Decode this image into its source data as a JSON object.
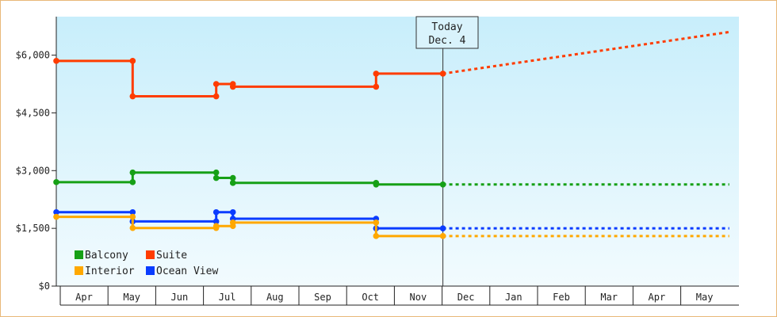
{
  "chart_data": {
    "type": "line",
    "step": true,
    "ylim": [
      0,
      7000
    ],
    "yticks": [
      0,
      1500,
      3000,
      4500,
      6000
    ],
    "ytick_labels": [
      "$0",
      "$1,500",
      "$3,000",
      "$4,500",
      "$6,000"
    ],
    "months": [
      "Apr",
      "May",
      "Jun",
      "Jul",
      "Aug",
      "Sep",
      "Oct",
      "Nov",
      "Dec",
      "Jan",
      "Feb",
      "Mar",
      "Apr",
      "May"
    ],
    "today_label": "Today",
    "today_date": "Dec. 4",
    "today_index": 8.1,
    "projection_end_index": 14.1,
    "colors": {
      "Balcony": "#16a016",
      "Suite": "#ff3c00",
      "Interior": "#ffa800",
      "Ocean View": "#0a3cff"
    },
    "legend_order": [
      "Balcony",
      "Suite",
      "Interior",
      "Ocean View"
    ],
    "series": [
      {
        "name": "Suite",
        "points": [
          [
            0.0,
            5850
          ],
          [
            1.6,
            5850
          ],
          [
            1.6,
            4930
          ],
          [
            3.35,
            4930
          ],
          [
            3.35,
            5250
          ],
          [
            3.7,
            5250
          ],
          [
            3.7,
            5180
          ],
          [
            6.7,
            5180
          ],
          [
            6.7,
            5520
          ],
          [
            8.1,
            5520
          ]
        ],
        "projection": [
          [
            8.1,
            5520
          ],
          [
            14.1,
            6600
          ]
        ]
      },
      {
        "name": "Balcony",
        "points": [
          [
            0.0,
            2700
          ],
          [
            1.6,
            2700
          ],
          [
            1.6,
            2950
          ],
          [
            3.35,
            2950
          ],
          [
            3.35,
            2810
          ],
          [
            3.7,
            2810
          ],
          [
            3.7,
            2680
          ],
          [
            6.7,
            2680
          ],
          [
            6.7,
            2640
          ],
          [
            8.1,
            2640
          ]
        ],
        "projection": [
          [
            8.1,
            2640
          ],
          [
            14.1,
            2640
          ]
        ]
      },
      {
        "name": "Ocean View",
        "points": [
          [
            0.0,
            1920
          ],
          [
            1.6,
            1920
          ],
          [
            1.6,
            1680
          ],
          [
            3.35,
            1680
          ],
          [
            3.35,
            1920
          ],
          [
            3.7,
            1920
          ],
          [
            3.7,
            1750
          ],
          [
            6.7,
            1750
          ],
          [
            6.7,
            1500
          ],
          [
            8.1,
            1500
          ]
        ],
        "projection": [
          [
            8.1,
            1500
          ],
          [
            14.1,
            1500
          ]
        ]
      },
      {
        "name": "Interior",
        "points": [
          [
            0.0,
            1800
          ],
          [
            1.6,
            1800
          ],
          [
            1.6,
            1510
          ],
          [
            3.35,
            1510
          ],
          [
            3.35,
            1560
          ],
          [
            3.7,
            1560
          ],
          [
            3.7,
            1650
          ],
          [
            6.7,
            1650
          ],
          [
            6.7,
            1300
          ],
          [
            8.1,
            1300
          ]
        ],
        "projection": [
          [
            8.1,
            1300
          ],
          [
            14.1,
            1300
          ]
        ]
      }
    ]
  }
}
